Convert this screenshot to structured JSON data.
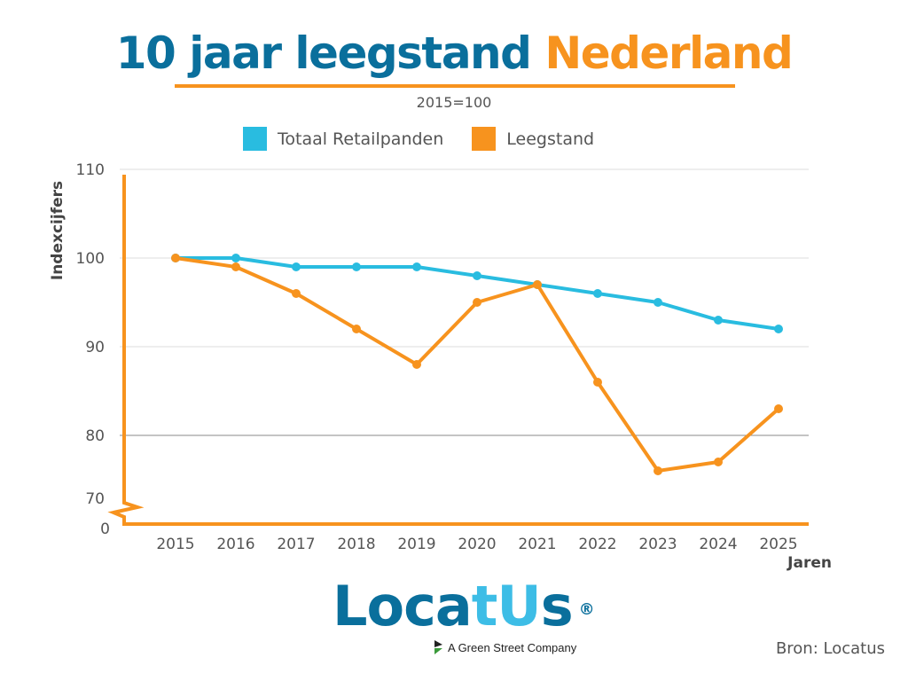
{
  "title": {
    "part1": "10 jaar leegstand",
    "part2": "Nederland"
  },
  "subtitle": "2015=100",
  "legend": [
    {
      "label": "Totaal Retailpanden",
      "color": "#29bce0"
    },
    {
      "label": "Leegstand",
      "color": "#f7931e"
    }
  ],
  "logo": {
    "part1": "Loca",
    "part2": "tU",
    "part3": "s",
    "registered": "®",
    "tagline": "A Green Street Company"
  },
  "source": "Bron: Locatus",
  "chart_data": {
    "type": "line",
    "title": "10 jaar leegstand Nederland",
    "subtitle": "2015=100",
    "xlabel": "Jaren",
    "ylabel": "Indexcijfers",
    "x": [
      "2015",
      "2016",
      "2017",
      "2018",
      "2019",
      "2020",
      "2021",
      "2022",
      "2023",
      "2024",
      "2025"
    ],
    "yticks": [
      110,
      100,
      90,
      80,
      70
    ],
    "ybreak_label": "0",
    "ylim": [
      70,
      110
    ],
    "axis_break": true,
    "grid": true,
    "legend_position": "top-center",
    "series": [
      {
        "name": "Totaal Retailpanden",
        "color": "#29bce0",
        "values": [
          100,
          100,
          99,
          99,
          99,
          98,
          97,
          96,
          95,
          93,
          92
        ]
      },
      {
        "name": "Leegstand",
        "color": "#f7931e",
        "values": [
          100,
          99,
          96,
          92,
          88,
          95,
          97,
          86,
          76,
          77,
          83
        ]
      }
    ]
  }
}
